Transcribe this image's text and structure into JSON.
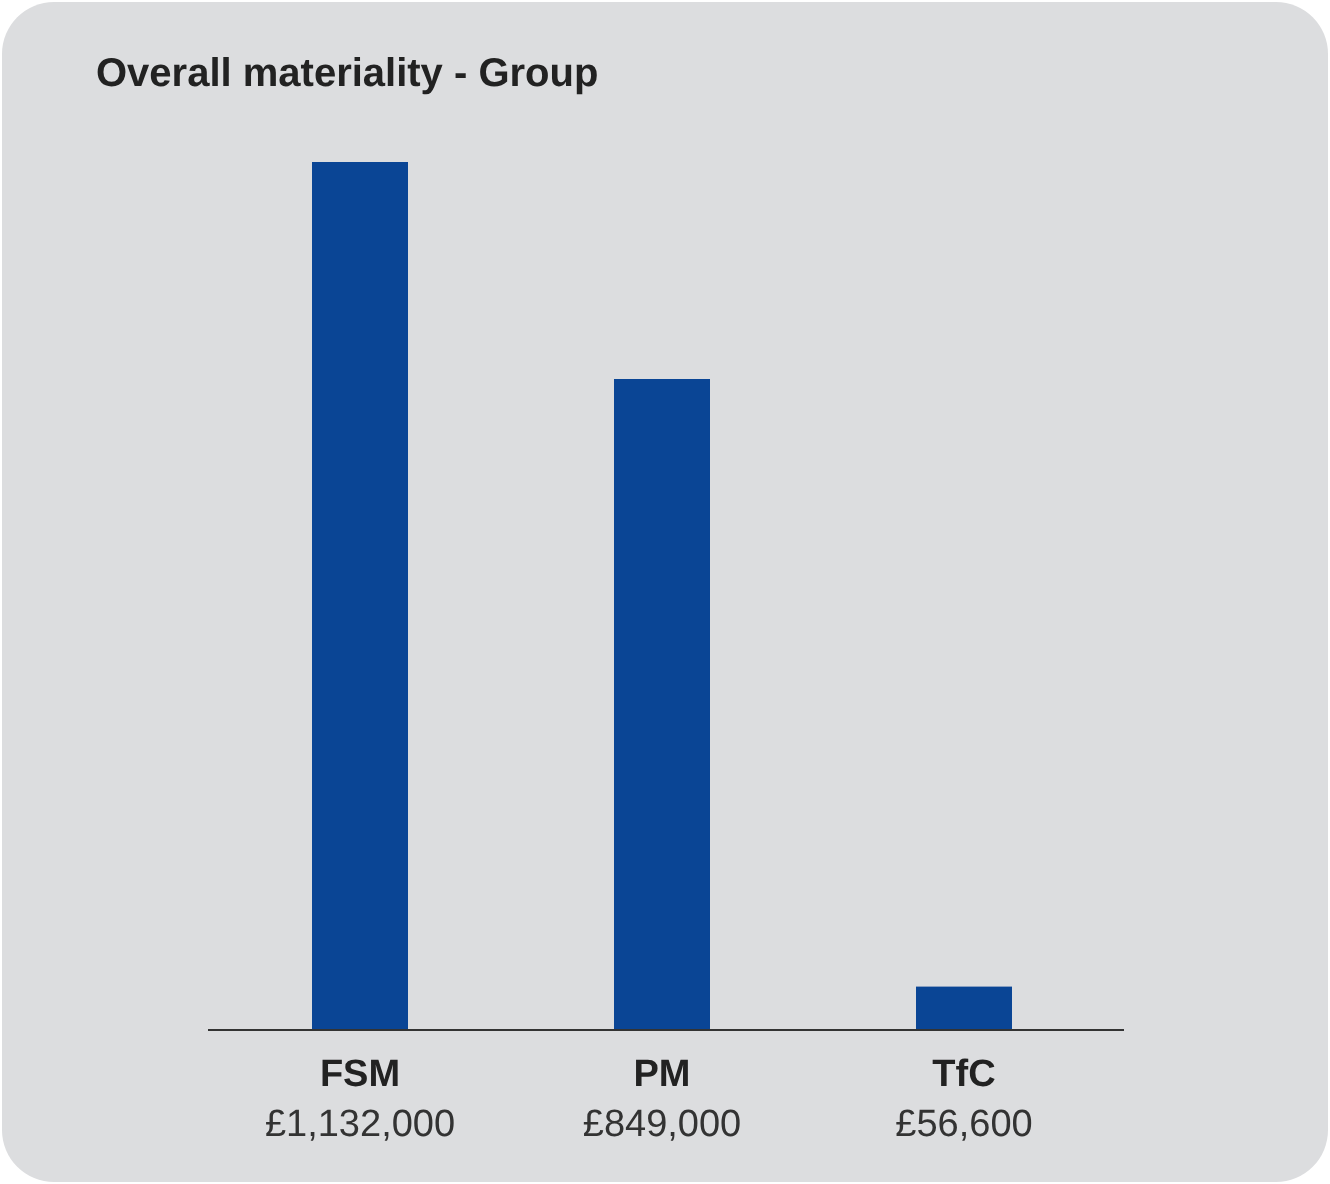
{
  "chart_data": {
    "type": "bar",
    "title": "Overall materiality - Group",
    "categories": [
      "FSM",
      "PM",
      "TfC"
    ],
    "values": [
      1132000,
      849000,
      56600
    ],
    "value_labels": [
      "£1,132,000",
      "£849,000",
      "£56,600"
    ],
    "color": "#0a4595"
  }
}
